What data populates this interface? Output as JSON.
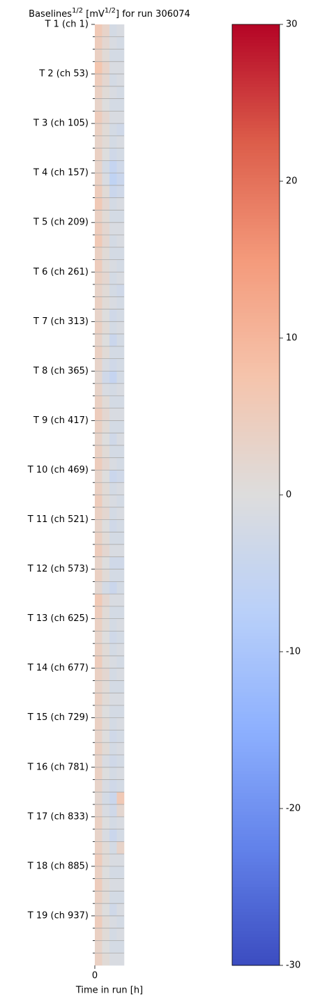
{
  "chart_data": {
    "type": "heatmap",
    "title": [
      "Baselines",
      "1/2",
      " [mV",
      "1/2",
      "] for run 306074"
    ],
    "xlabel": "Time in run [h]",
    "colormap": "coolwarm",
    "x": [
      0,
      1,
      2,
      3
    ],
    "xlim": [
      0,
      4
    ],
    "xticks": [
      0
    ],
    "y": [
      1,
      14,
      27,
      40,
      53,
      66,
      79,
      92,
      105,
      118,
      131,
      144,
      157,
      170,
      183,
      196,
      209,
      222,
      235,
      248,
      261,
      274,
      287,
      300,
      313,
      326,
      339,
      352,
      365,
      378,
      391,
      404,
      417,
      430,
      443,
      456,
      469,
      482,
      495,
      508,
      521,
      534,
      547,
      560,
      573,
      586,
      599,
      612,
      625,
      638,
      651,
      664,
      677,
      690,
      703,
      716,
      729,
      742,
      755,
      768,
      781,
      794,
      807,
      820,
      833,
      846,
      859,
      872,
      885,
      898,
      911,
      924,
      937,
      950,
      963,
      976
    ],
    "ylim": [
      1,
      989
    ],
    "yticks": [
      {
        "value": 1,
        "label": "T 1 (ch 1)"
      },
      {
        "value": 53,
        "label": "T 2 (ch 53)"
      },
      {
        "value": 105,
        "label": "T 3 (ch 105)"
      },
      {
        "value": 157,
        "label": "T 4 (ch 157)"
      },
      {
        "value": 209,
        "label": "T 5 (ch 209)"
      },
      {
        "value": 261,
        "label": "T 6 (ch 261)"
      },
      {
        "value": 313,
        "label": "T 7 (ch 313)"
      },
      {
        "value": 365,
        "label": "T 8 (ch 365)"
      },
      {
        "value": 417,
        "label": "T 9 (ch 417)"
      },
      {
        "value": 469,
        "label": "T 10 (ch 469)"
      },
      {
        "value": 521,
        "label": "T 11 (ch 521)"
      },
      {
        "value": 573,
        "label": "T 12 (ch 573)"
      },
      {
        "value": 625,
        "label": "T 13 (ch 625)"
      },
      {
        "value": 677,
        "label": "T 14 (ch 677)"
      },
      {
        "value": 729,
        "label": "T 15 (ch 729)"
      },
      {
        "value": 781,
        "label": "T 16 (ch 781)"
      },
      {
        "value": 833,
        "label": "T 17 (ch 833)"
      },
      {
        "value": 885,
        "label": "T 18 (ch 885)"
      },
      {
        "value": 937,
        "label": "T 19 (ch 937)"
      }
    ],
    "clim": [
      -30,
      30
    ],
    "cticks": [
      -30,
      -20,
      -10,
      0,
      10,
      20,
      30
    ],
    "z": [
      [
        6,
        3,
        -2,
        -1
      ],
      [
        5,
        2,
        -1,
        -2
      ],
      [
        4,
        1,
        -2,
        -2
      ],
      [
        7,
        3,
        -1,
        -1
      ],
      [
        5,
        2,
        -2,
        -1
      ],
      [
        4,
        1,
        -1,
        -2
      ],
      [
        3,
        0,
        -2,
        -2
      ],
      [
        5,
        2,
        -1,
        -1
      ],
      [
        4,
        1,
        -2,
        -3
      ],
      [
        3,
        1,
        -2,
        -1
      ],
      [
        4,
        0,
        -3,
        -2
      ],
      [
        3,
        -2,
        -5,
        -3
      ],
      [
        4,
        -1,
        -6,
        -4
      ],
      [
        5,
        1,
        -4,
        -3
      ],
      [
        6,
        2,
        -2,
        -1
      ],
      [
        4,
        1,
        -2,
        -2
      ],
      [
        5,
        2,
        -1,
        -1
      ],
      [
        6,
        2,
        -2,
        -1
      ],
      [
        4,
        1,
        -2,
        -2
      ],
      [
        5,
        1,
        -1,
        -2
      ],
      [
        4,
        2,
        -2,
        -1
      ],
      [
        3,
        1,
        -2,
        -3
      ],
      [
        4,
        1,
        -1,
        -2
      ],
      [
        3,
        0,
        -3,
        -2
      ],
      [
        4,
        1,
        -2,
        -1
      ],
      [
        3,
        0,
        -4,
        -2
      ],
      [
        4,
        1,
        -2,
        -2
      ],
      [
        3,
        -1,
        -3,
        -2
      ],
      [
        2,
        -3,
        -5,
        -2
      ],
      [
        3,
        -1,
        -2,
        -1
      ],
      [
        4,
        1,
        -2,
        -2
      ],
      [
        5,
        2,
        -1,
        -1
      ],
      [
        4,
        1,
        -2,
        -2
      ],
      [
        3,
        0,
        -3,
        -1
      ],
      [
        4,
        1,
        -2,
        -2
      ],
      [
        5,
        2,
        -1,
        -2
      ],
      [
        3,
        0,
        -4,
        -3
      ],
      [
        4,
        1,
        -2,
        -1
      ],
      [
        5,
        1,
        -1,
        -2
      ],
      [
        4,
        2,
        -2,
        -1
      ],
      [
        3,
        0,
        -3,
        -2
      ],
      [
        4,
        1,
        -2,
        -2
      ],
      [
        5,
        2,
        -1,
        -1
      ],
      [
        3,
        0,
        -3,
        -3
      ],
      [
        4,
        1,
        -2,
        -2
      ],
      [
        2,
        -2,
        -4,
        -2
      ],
      [
        6,
        2,
        -1,
        -1
      ],
      [
        5,
        1,
        -2,
        -2
      ],
      [
        4,
        1,
        -2,
        -1
      ],
      [
        3,
        0,
        -3,
        -2
      ],
      [
        4,
        1,
        -2,
        -1
      ],
      [
        5,
        1,
        -1,
        -2
      ],
      [
        4,
        2,
        -2,
        -1
      ],
      [
        3,
        1,
        -2,
        -2
      ],
      [
        4,
        1,
        -1,
        -1
      ],
      [
        3,
        0,
        -2,
        -2
      ],
      [
        4,
        1,
        -2,
        -1
      ],
      [
        3,
        0,
        -3,
        -2
      ],
      [
        4,
        1,
        -2,
        -1
      ],
      [
        3,
        -1,
        -3,
        -2
      ],
      [
        4,
        0,
        -2,
        -1
      ],
      [
        3,
        -1,
        -3,
        -2
      ],
      [
        2,
        -2,
        -4,
        6
      ],
      [
        3,
        -1,
        -3,
        2
      ],
      [
        4,
        0,
        -2,
        -1
      ],
      [
        3,
        -1,
        -4,
        -2
      ],
      [
        4,
        1,
        -2,
        3
      ],
      [
        5,
        1,
        -1,
        -1
      ],
      [
        4,
        0,
        -2,
        -2
      ],
      [
        5,
        1,
        -1,
        -1
      ],
      [
        4,
        1,
        -2,
        -2
      ],
      [
        3,
        0,
        -3,
        -1
      ],
      [
        5,
        1,
        -1,
        -2
      ],
      [
        4,
        1,
        -2,
        -1
      ],
      [
        3,
        0,
        -2,
        -2
      ],
      [
        4,
        1,
        -1,
        -1
      ]
    ]
  }
}
